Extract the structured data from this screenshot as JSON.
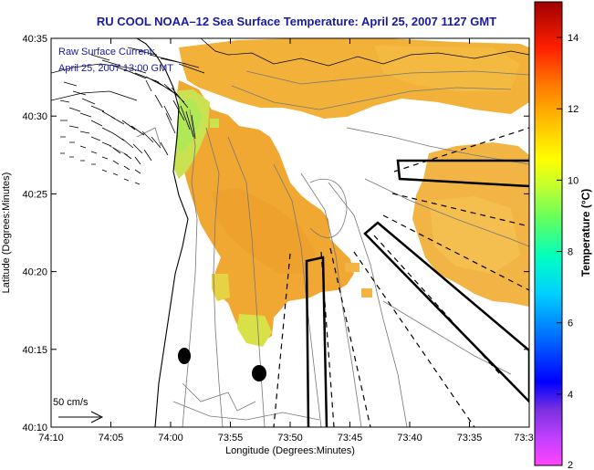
{
  "title": "RU COOL  NOAA–12  Sea Surface Temperature:  April 25, 2007 1127 GMT",
  "legend": {
    "line1": "Raw Surface Current:",
    "line2": "April 25, 2007 13:00 GMT",
    "scale_label": "50 cm/s"
  },
  "x_axis": {
    "label": "Longitude (Degrees:Minutes)",
    "ticks": [
      "74:10",
      "74:05",
      "74:00",
      "73:55",
      "73:50",
      "73:45",
      "73:40",
      "73:35",
      "73:3"
    ]
  },
  "y_axis": {
    "label": "Latitude (Degrees:Minutes)",
    "ticks": [
      "40:35",
      "40:30",
      "40:25",
      "40:20",
      "40:15",
      "40:10"
    ]
  },
  "colorbar": {
    "label": "Temperature (°C)",
    "ticks": [
      "14",
      "12",
      "10",
      "8",
      "6",
      "4",
      "2"
    ],
    "range": [
      2,
      15
    ],
    "colors": [
      "#ff44ff",
      "#8a3cff",
      "#0000ff",
      "#00b4ff",
      "#00ffe0",
      "#50ff80",
      "#c8ff30",
      "#ffff00",
      "#ffc000",
      "#ff6a00",
      "#ff0000",
      "#b00000"
    ]
  },
  "sst_color": "#f0a82a"
}
